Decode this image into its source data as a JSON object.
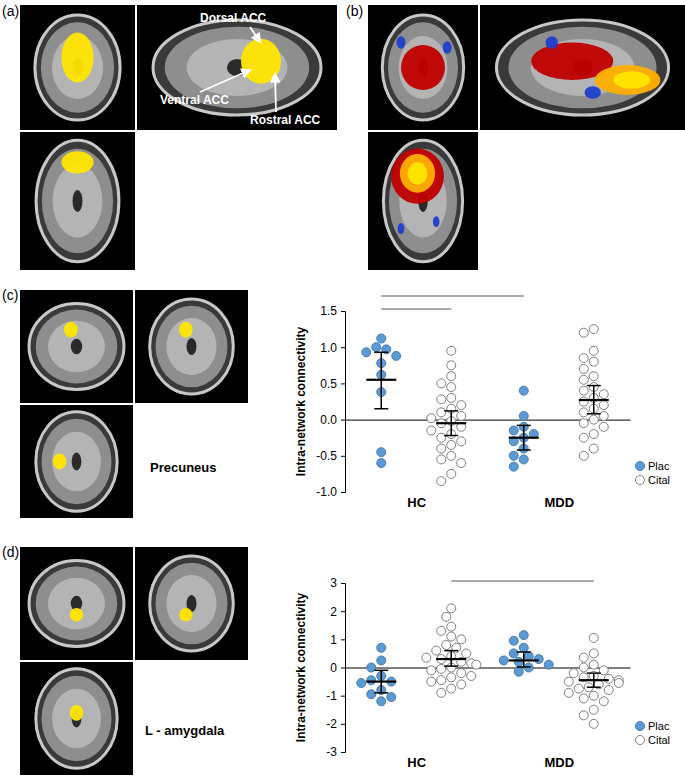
{
  "panels": [
    {
      "label": "(a)",
      "annotations": [
        "Dorsal ACC",
        "Ventral ACC",
        "Rostral ACC"
      ]
    },
    {
      "label": "(b)"
    },
    {
      "label": "(c)",
      "region": "Precuneus"
    },
    {
      "label": "(d)",
      "region": "L - amygdala"
    }
  ],
  "chart_data": [
    {
      "type": "dot",
      "y_label": "Intra-network connectivity",
      "categories": [
        "HC",
        "MDD"
      ],
      "ylim": [
        -1,
        1.5
      ],
      "yticks": [
        {
          "value": -1,
          "label": "-1.0"
        },
        -0.5,
        {
          "value": 0,
          "label": "0.0"
        },
        0.5,
        {
          "value": 1,
          "label": "1.0"
        },
        1.5
      ],
      "legend": "lower right",
      "comparisons": [
        {
          "from": [
            "HC",
            "Plac"
          ],
          "to": [
            "HC",
            "Cital"
          ]
        },
        {
          "from": [
            "HC",
            "Plac"
          ],
          "to": [
            "MDD",
            "Plac"
          ]
        }
      ],
      "series": [
        {
          "name": "Plac",
          "color": "#5b9bd5",
          "marker": "filled-circle",
          "values": [
            [
              1.12,
              1.0,
              0.97,
              0.93,
              0.88,
              0.78,
              0.62,
              0.38,
              -0.45,
              -0.6
            ],
            [
              0.4,
              0.05,
              -0.1,
              -0.15,
              -0.2,
              -0.25,
              -0.3,
              -0.4,
              -0.5,
              -0.55,
              -0.65
            ]
          ],
          "mean": [
            0.55,
            -0.25
          ],
          "error_low": [
            0.15,
            -0.42
          ],
          "error_high": [
            0.93,
            -0.08
          ]
        },
        {
          "name": "Cital",
          "color": "#7f7f7f",
          "marker": "open-circle",
          "values": [
            [
              0.95,
              0.75,
              0.6,
              0.5,
              0.45,
              0.3,
              0.28,
              0.2,
              0.15,
              0.1,
              0.05,
              0.02,
              -0.02,
              -0.05,
              -0.1,
              -0.15,
              -0.2,
              -0.25,
              -0.3,
              -0.35,
              -0.4,
              -0.5,
              -0.55,
              -0.6,
              -0.75,
              -0.85
            ],
            [
              1.25,
              1.2,
              0.95,
              0.85,
              0.8,
              0.7,
              0.6,
              0.55,
              0.45,
              0.4,
              0.35,
              0.3,
              0.25,
              0.2,
              0.15,
              0.1,
              0.05,
              0.0,
              -0.05,
              -0.1,
              -0.2,
              -0.25,
              -0.4,
              -0.5
            ]
          ],
          "mean": [
            -0.05,
            0.27
          ],
          "error_low": [
            -0.22,
            0.08
          ],
          "error_high": [
            0.12,
            0.47
          ]
        }
      ]
    },
    {
      "type": "dot",
      "y_label": "Intra-network connectivity",
      "categories": [
        "HC",
        "MDD"
      ],
      "ylim": [
        -3,
        3
      ],
      "yticks": [
        -3,
        -2,
        -1,
        0,
        1,
        2,
        3
      ],
      "legend": "lower right",
      "comparisons": [
        {
          "from": [
            "HC",
            "Cital"
          ],
          "to": [
            "MDD",
            "Cital"
          ]
        }
      ],
      "series": [
        {
          "name": "Plac",
          "color": "#5b9bd5",
          "marker": "filled-circle",
          "values": [
            [
              0.7,
              0.25,
              0.0,
              -0.3,
              -0.45,
              -0.5,
              -0.55,
              -0.8,
              -0.95,
              -1.05,
              -1.2
            ],
            [
              1.15,
              0.95,
              0.7,
              0.5,
              0.4,
              0.3,
              0.25,
              0.2,
              0.1,
              0.0,
              -0.15
            ]
          ],
          "mean": [
            -0.5,
            0.25
          ],
          "error_low": [
            -0.9,
            0.02
          ],
          "error_high": [
            -0.1,
            0.55
          ]
        },
        {
          "name": "Cital",
          "color": "#7f7f7f",
          "marker": "open-circle",
          "values": [
            [
              2.1,
              1.8,
              1.45,
              1.3,
              1.1,
              1.0,
              0.8,
              0.7,
              0.6,
              0.5,
              0.4,
              0.35,
              0.3,
              0.2,
              0.15,
              0.1,
              0.0,
              -0.05,
              -0.1,
              -0.2,
              -0.3,
              -0.35,
              -0.45,
              -0.5,
              -0.6,
              -0.75,
              -0.9
            ],
            [
              1.05,
              0.5,
              0.35,
              0.1,
              0.0,
              -0.1,
              -0.2,
              -0.3,
              -0.35,
              -0.4,
              -0.45,
              -0.5,
              -0.55,
              -0.6,
              -0.7,
              -0.75,
              -0.8,
              -0.9,
              -1.0,
              -1.1,
              -1.2,
              -1.5,
              -1.7,
              -2.0
            ]
          ],
          "mean": [
            0.3,
            -0.45
          ],
          "error_low": [
            0.05,
            -0.7
          ],
          "error_high": [
            0.6,
            -0.2
          ]
        }
      ]
    }
  ]
}
